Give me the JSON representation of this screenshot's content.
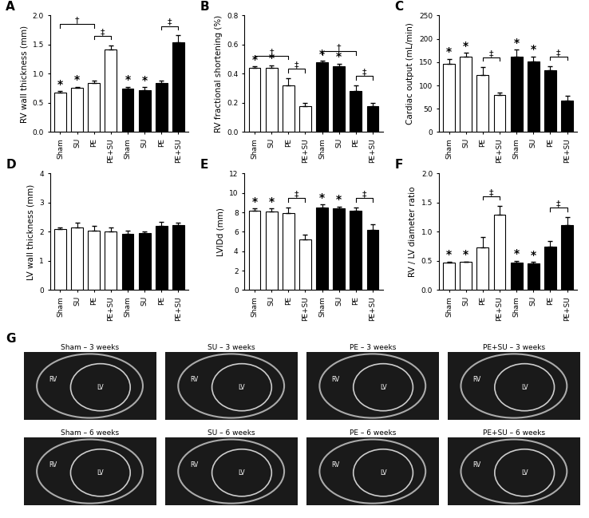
{
  "chart_data": [
    {
      "type": "bar",
      "title": "A",
      "y_label": "RV wall thickness (mm)",
      "categories": [
        "Sham",
        "SU",
        "PE",
        "PE+SU",
        "Sham",
        "SU",
        "PE",
        "PE+SU"
      ],
      "values": [
        0.68,
        0.76,
        0.84,
        1.42,
        0.74,
        0.72,
        0.84,
        1.54
      ],
      "errors": [
        0.02,
        0.02,
        0.04,
        0.07,
        0.04,
        0.05,
        0.05,
        0.12
      ],
      "colors": [
        "#ffffff",
        "#ffffff",
        "#ffffff",
        "#ffffff",
        "#000000",
        "#000000",
        "#000000",
        "#000000"
      ],
      "ylim": [
        0,
        2.0
      ],
      "yticks": [
        {
          "value": 0,
          "label": "0.0"
        },
        {
          "value": 0.5,
          "label": "0.5"
        },
        {
          "value": 1.0,
          "label": "1.0"
        },
        {
          "value": 1.5,
          "label": "1.5"
        },
        {
          "value": 2.0,
          "label": "2.0"
        }
      ],
      "annotations": [
        {
          "text": "*",
          "bar": 0
        },
        {
          "text": "*",
          "bar": 1
        },
        {
          "text": "*",
          "bar": 4
        },
        {
          "text": "*",
          "bar": 5
        }
      ],
      "brackets": [
        {
          "text": "‡",
          "from": 2,
          "to": 3
        },
        {
          "text": "†",
          "from": 0,
          "to": 2
        },
        {
          "text": "‡",
          "from": 6,
          "to": 7
        }
      ]
    },
    {
      "type": "bar",
      "title": "B",
      "y_label": "RV fractional shortening (%)",
      "categories": [
        "Sham",
        "SU",
        "PE",
        "PE+SU",
        "Sham",
        "SU",
        "PE",
        "PE+SU"
      ],
      "values": [
        0.44,
        0.44,
        0.32,
        0.18,
        0.48,
        0.45,
        0.28,
        0.18
      ],
      "errors": [
        0.01,
        0.02,
        0.05,
        0.02,
        0.01,
        0.02,
        0.04,
        0.02
      ],
      "colors": [
        "#ffffff",
        "#ffffff",
        "#ffffff",
        "#ffffff",
        "#000000",
        "#000000",
        "#000000",
        "#000000"
      ],
      "ylim": [
        0,
        0.8
      ],
      "yticks": [
        {
          "value": 0,
          "label": "0.0"
        },
        {
          "value": 0.2,
          "label": "0.2"
        },
        {
          "value": 0.4,
          "label": "0.4"
        },
        {
          "value": 0.6,
          "label": "0.6"
        },
        {
          "value": 0.8,
          "label": "0.8"
        }
      ],
      "annotations": [
        {
          "text": "*",
          "bar": 0
        },
        {
          "text": "*",
          "bar": 1
        },
        {
          "text": "*",
          "bar": 4
        },
        {
          "text": "*",
          "bar": 5
        }
      ],
      "brackets": [
        {
          "text": "‡",
          "from": 2,
          "to": 3
        },
        {
          "text": "†",
          "from": 0,
          "to": 2
        },
        {
          "text": "‡",
          "from": 6,
          "to": 7
        },
        {
          "text": "†",
          "from": 4,
          "to": 6
        }
      ]
    },
    {
      "type": "bar",
      "title": "C",
      "y_label": "Cardiac output (mL/min)",
      "categories": [
        "Sham",
        "SU",
        "PE",
        "PE+SU",
        "Sham",
        "SU",
        "PE",
        "PE+SU"
      ],
      "values": [
        147,
        162,
        122,
        80,
        162,
        152,
        132,
        68
      ],
      "errors": [
        10,
        8,
        18,
        5,
        15,
        10,
        10,
        10
      ],
      "colors": [
        "#ffffff",
        "#ffffff",
        "#ffffff",
        "#ffffff",
        "#000000",
        "#000000",
        "#000000",
        "#000000"
      ],
      "ylim": [
        0,
        250
      ],
      "yticks": [
        0,
        50,
        100,
        150,
        200,
        250
      ],
      "annotations": [
        {
          "text": "*",
          "bar": 0
        },
        {
          "text": "*",
          "bar": 1
        },
        {
          "text": "*",
          "bar": 4
        },
        {
          "text": "*",
          "bar": 5
        }
      ],
      "brackets": [
        {
          "text": "‡",
          "from": 2,
          "to": 3
        },
        {
          "text": "‡",
          "from": 6,
          "to": 7
        }
      ]
    },
    {
      "type": "bar",
      "title": "D",
      "y_label": "LV wall thickness (mm)",
      "categories": [
        "Sham",
        "SU",
        "PE",
        "PE+SU",
        "Sham",
        "SU",
        "PE",
        "PE+SU"
      ],
      "values": [
        2.1,
        2.15,
        2.05,
        2.0,
        1.93,
        1.97,
        2.2,
        2.22
      ],
      "errors": [
        0.05,
        0.15,
        0.15,
        0.15,
        0.1,
        0.03,
        0.15,
        0.1
      ],
      "colors": [
        "#ffffff",
        "#ffffff",
        "#ffffff",
        "#ffffff",
        "#000000",
        "#000000",
        "#000000",
        "#000000"
      ],
      "ylim": [
        0,
        4
      ],
      "yticks": [
        0,
        1,
        2,
        3,
        4
      ],
      "annotations": [],
      "brackets": []
    },
    {
      "type": "bar",
      "title": "E",
      "y_label": "LVIDd (mm)",
      "categories": [
        "Sham",
        "SU",
        "PE",
        "PE+SU",
        "Sham",
        "SU",
        "PE",
        "PE+SU"
      ],
      "values": [
        8.2,
        8.1,
        7.9,
        5.2,
        8.5,
        8.4,
        8.2,
        6.2
      ],
      "errors": [
        0.2,
        0.3,
        0.6,
        0.5,
        0.3,
        0.2,
        0.3,
        0.6
      ],
      "colors": [
        "#ffffff",
        "#ffffff",
        "#ffffff",
        "#ffffff",
        "#000000",
        "#000000",
        "#000000",
        "#000000"
      ],
      "ylim": [
        0,
        12
      ],
      "yticks": [
        0,
        2,
        4,
        6,
        8,
        10,
        12
      ],
      "annotations": [
        {
          "text": "*",
          "bar": 0
        },
        {
          "text": "*",
          "bar": 1
        },
        {
          "text": "*",
          "bar": 4
        },
        {
          "text": "*",
          "bar": 5
        }
      ],
      "brackets": [
        {
          "text": "‡",
          "from": 2,
          "to": 3
        },
        {
          "text": "‡",
          "from": 6,
          "to": 7
        }
      ]
    },
    {
      "type": "bar",
      "title": "F",
      "y_label": "RV / LV diameter ratio",
      "categories": [
        "Sham",
        "SU",
        "PE",
        "PE+SU",
        "Sham",
        "SU",
        "PE",
        "PE+SU"
      ],
      "values": [
        0.47,
        0.48,
        0.73,
        1.3,
        0.47,
        0.46,
        0.74,
        1.12
      ],
      "errors": [
        0.02,
        0.01,
        0.18,
        0.15,
        0.03,
        0.02,
        0.1,
        0.13
      ],
      "colors": [
        "#ffffff",
        "#ffffff",
        "#ffffff",
        "#ffffff",
        "#000000",
        "#000000",
        "#000000",
        "#000000"
      ],
      "ylim": [
        0,
        2.0
      ],
      "yticks": [
        {
          "value": 0,
          "label": "0.0"
        },
        {
          "value": 0.5,
          "label": "0.5"
        },
        {
          "value": 1.0,
          "label": "1.0"
        },
        {
          "value": 1.5,
          "label": "1.5"
        },
        {
          "value": 2.0,
          "label": "2.0"
        }
      ],
      "annotations": [
        {
          "text": "*",
          "bar": 0
        },
        {
          "text": "*",
          "bar": 1
        },
        {
          "text": "*",
          "bar": 4
        },
        {
          "text": "*",
          "bar": 5
        }
      ],
      "brackets": [
        {
          "text": "‡",
          "from": 2,
          "to": 3
        },
        {
          "text": "‡",
          "from": 6,
          "to": 7
        }
      ]
    }
  ],
  "images": {
    "title": "G",
    "tiles": [
      {
        "title": "Sham – 3 weeks",
        "labels": [
          "RV",
          "LV"
        ]
      },
      {
        "title": "SU – 3 weeks",
        "labels": [
          "RV",
          "LV"
        ]
      },
      {
        "title": "PE – 3 weeks",
        "labels": [
          "RV",
          "LV"
        ]
      },
      {
        "title": "PE+SU – 3 weeks",
        "labels": [
          "RV",
          "LV"
        ]
      },
      {
        "title": "Sham – 6 weeks",
        "labels": [
          "RV",
          "LV"
        ]
      },
      {
        "title": "SU – 6 weeks",
        "labels": [
          "RV",
          "LV"
        ]
      },
      {
        "title": "PE – 6 weeks",
        "labels": [
          "RV",
          "LV"
        ]
      },
      {
        "title": "PE+SU – 6 weeks",
        "labels": [
          "RV",
          "LV"
        ]
      }
    ]
  }
}
